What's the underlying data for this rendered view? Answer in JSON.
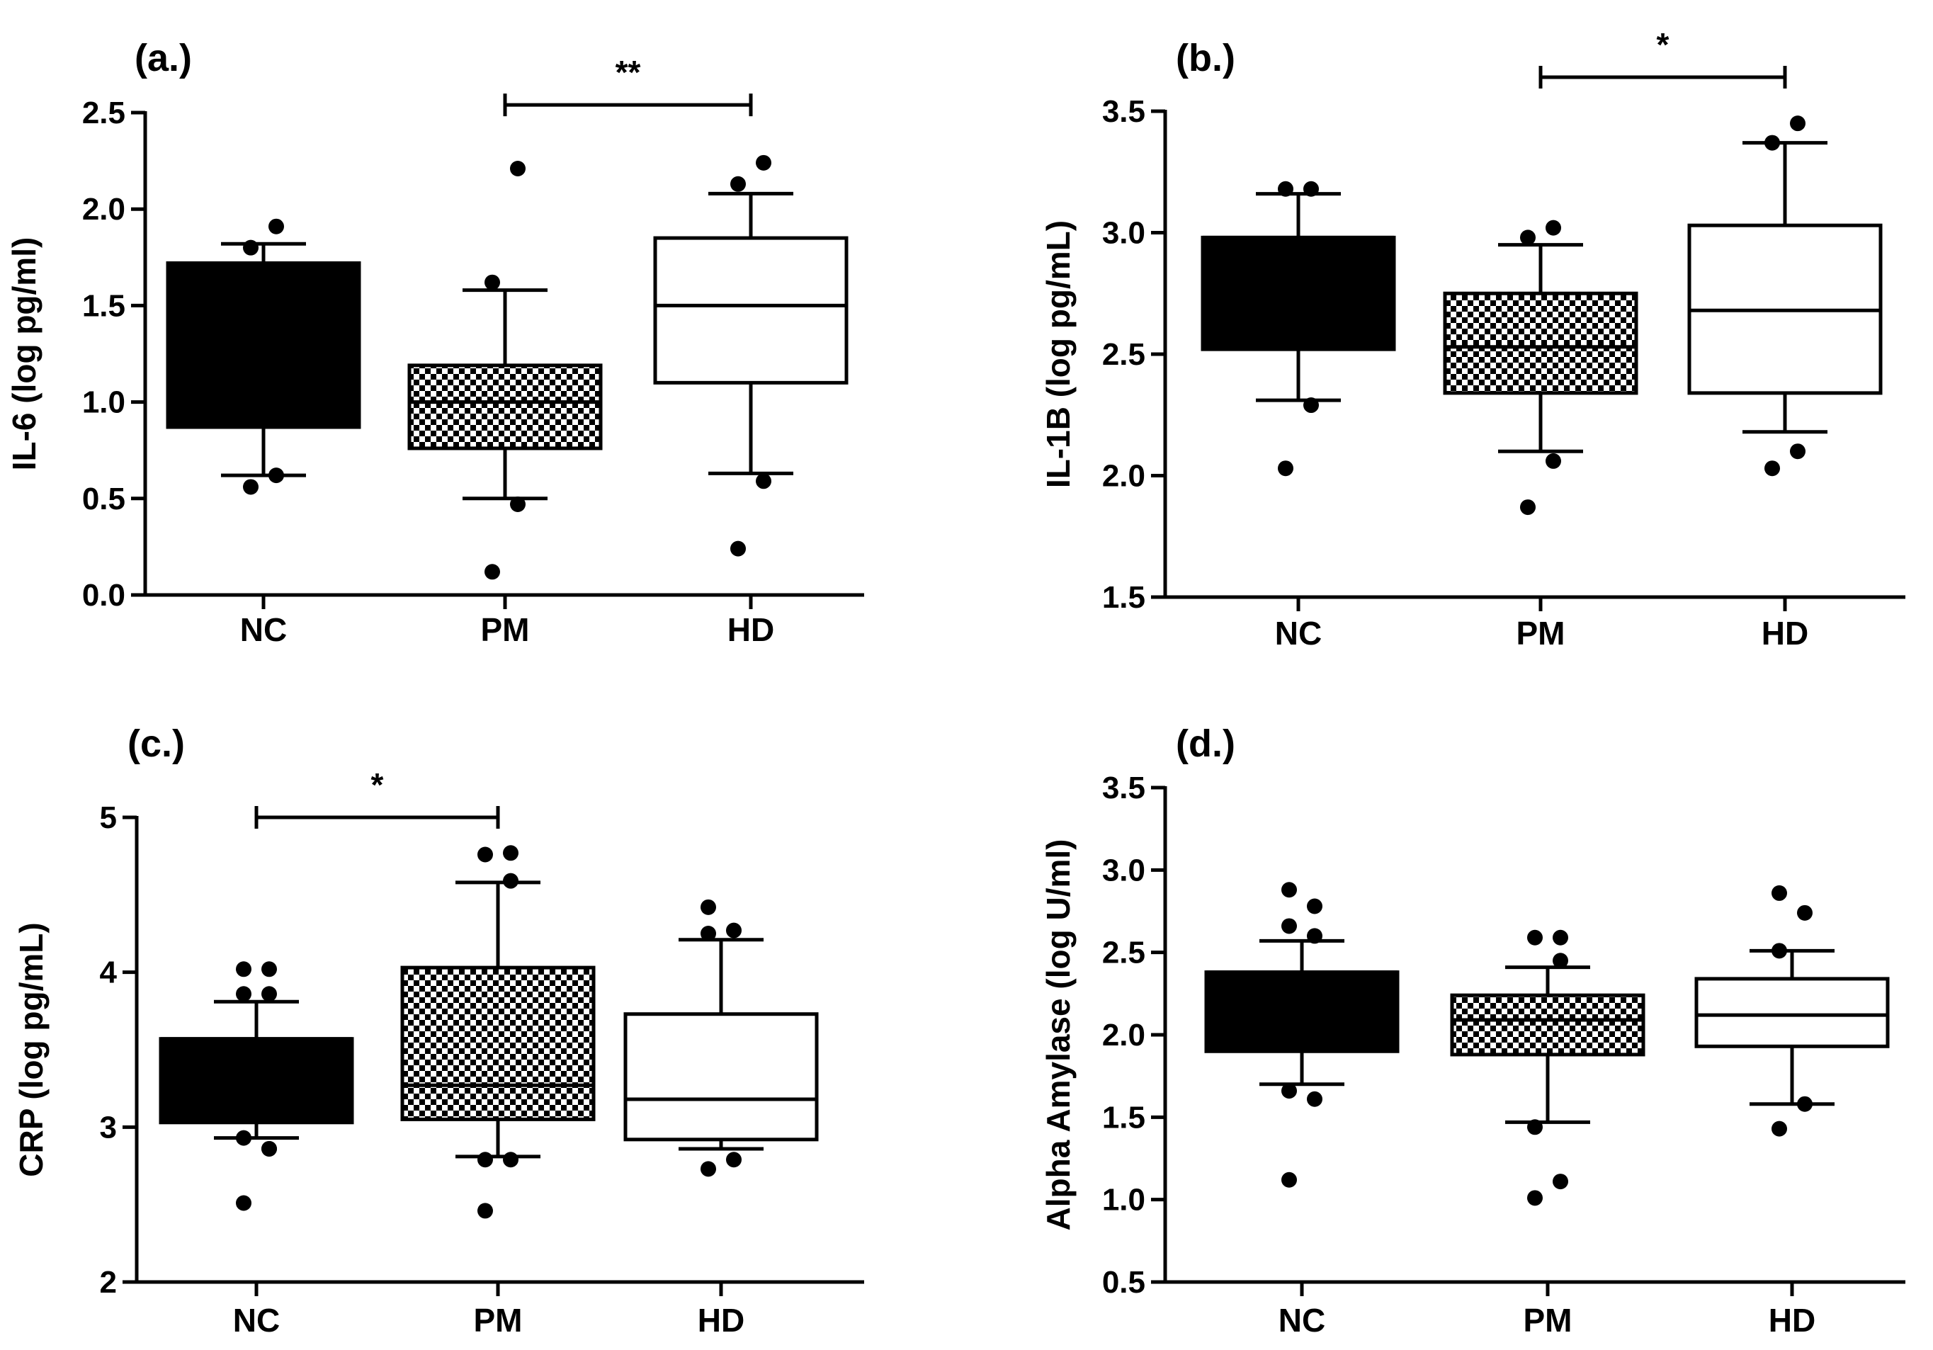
{
  "figure": {
    "type": "box",
    "layout": "2x2 grid"
  },
  "chart_data": [
    {
      "type": "box",
      "panel": "(a.)",
      "ylabel": "IL-6 (log pg/ml)",
      "ylim": [
        0.0,
        2.5
      ],
      "yticks": [
        0.0,
        0.5,
        1.0,
        1.5,
        2.0,
        2.5
      ],
      "ytick_labels": [
        "0.0",
        "0.5",
        "1.0",
        "1.5",
        "2.0",
        "2.5"
      ],
      "categories": [
        "NC",
        "PM",
        "HD"
      ],
      "fills": [
        "solid-black",
        "checkered",
        "white"
      ],
      "boxes": [
        {
          "name": "NC",
          "q1": 0.87,
          "median": 1.72,
          "q3": 1.72,
          "whisker_low": 0.62,
          "whisker_high": 1.82,
          "outliers": [
            0.56,
            0.62,
            1.8,
            1.91
          ]
        },
        {
          "name": "PM",
          "q1": 0.76,
          "median": 1.0,
          "q3": 1.19,
          "whisker_low": 0.5,
          "whisker_high": 1.58,
          "outliers": [
            0.12,
            0.47,
            1.62,
            2.21
          ]
        },
        {
          "name": "HD",
          "q1": 1.1,
          "median": 1.5,
          "q3": 1.85,
          "whisker_low": 0.63,
          "whisker_high": 2.08,
          "outliers": [
            0.24,
            0.59,
            2.13,
            2.24
          ]
        }
      ],
      "significance": [
        {
          "from": "PM",
          "to": "HD",
          "label": "**",
          "y": 2.54
        }
      ]
    },
    {
      "type": "box",
      "panel": "(b.)",
      "ylabel": "IL-1B (log pg/mL)",
      "ylim": [
        1.5,
        3.5
      ],
      "yticks": [
        1.5,
        2.0,
        2.5,
        3.0,
        3.5
      ],
      "ytick_labels": [
        "1.5",
        "2.0",
        "2.5",
        "3.0",
        "3.5"
      ],
      "categories": [
        "NC",
        "PM",
        "HD"
      ],
      "fills": [
        "solid-black",
        "checkered",
        "white"
      ],
      "boxes": [
        {
          "name": "NC",
          "q1": 2.52,
          "median": 2.98,
          "q3": 2.98,
          "whisker_low": 2.31,
          "whisker_high": 3.16,
          "outliers": [
            2.03,
            2.29,
            3.18,
            3.18
          ]
        },
        {
          "name": "PM",
          "q1": 2.34,
          "median": 2.53,
          "q3": 2.75,
          "whisker_low": 2.1,
          "whisker_high": 2.95,
          "outliers": [
            1.87,
            2.06,
            2.98,
            3.02
          ]
        },
        {
          "name": "HD",
          "q1": 2.34,
          "median": 2.68,
          "q3": 3.03,
          "whisker_low": 2.18,
          "whisker_high": 3.37,
          "outliers": [
            2.03,
            2.1,
            3.37,
            3.45
          ]
        }
      ],
      "significance": [
        {
          "from": "PM",
          "to": "HD",
          "label": "*",
          "y": 3.64
        }
      ]
    },
    {
      "type": "box",
      "panel": "(c.)",
      "ylabel": "CRP (log pg/mL)",
      "ylim": [
        2,
        5
      ],
      "yticks": [
        2,
        3,
        4,
        5
      ],
      "ytick_labels": [
        "2",
        "3",
        "4",
        "5"
      ],
      "categories": [
        "NC",
        "PM",
        "HD"
      ],
      "fills": [
        "solid-black",
        "checkered",
        "white"
      ],
      "boxes": [
        {
          "name": "NC",
          "q1": 3.03,
          "median": 3.57,
          "q3": 3.57,
          "whisker_low": 2.93,
          "whisker_high": 3.81,
          "outliers": [
            2.51,
            2.86,
            2.93,
            2.86,
            3.86,
            3.86,
            4.02,
            4.02
          ]
        },
        {
          "name": "PM",
          "q1": 3.05,
          "median": 3.27,
          "q3": 4.03,
          "whisker_low": 2.81,
          "whisker_high": 4.58,
          "outliers": [
            2.46,
            2.79,
            2.79,
            4.59,
            4.76,
            4.77
          ]
        },
        {
          "name": "HD",
          "q1": 2.92,
          "median": 3.18,
          "q3": 3.73,
          "whisker_low": 2.86,
          "whisker_high": 4.21,
          "outliers": [
            2.73,
            2.79,
            4.25,
            4.27,
            4.42
          ]
        }
      ],
      "significance": [
        {
          "from": "NC",
          "to": "PM",
          "label": "*",
          "y": 5.0
        }
      ]
    },
    {
      "type": "box",
      "panel": "(d.)",
      "ylabel": "Alpha Amylase (log U/ml)",
      "ylim": [
        0.5,
        3.5
      ],
      "yticks": [
        0.5,
        1.0,
        1.5,
        2.0,
        2.5,
        3.0,
        3.5
      ],
      "ytick_labels": [
        "0.5",
        "1.0",
        "1.5",
        "2.0",
        "2.5",
        "3.0",
        "3.5"
      ],
      "categories": [
        "NC",
        "PM",
        "HD"
      ],
      "fills": [
        "solid-black",
        "checkered",
        "white"
      ],
      "boxes": [
        {
          "name": "NC",
          "q1": 1.9,
          "median": 2.38,
          "q3": 2.38,
          "whisker_low": 1.7,
          "whisker_high": 2.57,
          "outliers": [
            1.12,
            1.61,
            1.66,
            2.6,
            2.66,
            2.78,
            2.88
          ]
        },
        {
          "name": "PM",
          "q1": 1.88,
          "median": 2.09,
          "q3": 2.24,
          "whisker_low": 1.47,
          "whisker_high": 2.41,
          "outliers": [
            1.01,
            1.11,
            1.44,
            2.45,
            2.59,
            2.59
          ]
        },
        {
          "name": "HD",
          "q1": 1.93,
          "median": 2.12,
          "q3": 2.34,
          "whisker_low": 1.58,
          "whisker_high": 2.51,
          "outliers": [
            1.43,
            1.58,
            2.51,
            2.74,
            2.86
          ]
        }
      ],
      "significance": []
    }
  ]
}
